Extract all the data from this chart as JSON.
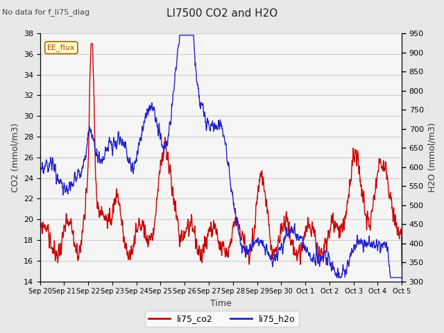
{
  "title": "LI7500 CO2 and H2O",
  "top_label": "No data for f_li75_diag",
  "annotation": "EE_flux",
  "ylabel_left": "CO2 (mmol/m3)",
  "ylabel_right": "H2O (mmol/m3)",
  "xlabel": "Time",
  "ylim_left": [
    14,
    38
  ],
  "ylim_right": [
    300,
    950
  ],
  "legend_labels": [
    "li75_co2",
    "li75_h2o"
  ],
  "legend_colors": [
    "#cc0000",
    "#2222cc"
  ],
  "grid_color": "#cccccc",
  "background_color": "#e8e8e8",
  "plot_bg_color": "#f5f5f5",
  "x_tick_labels": [
    "Sep 20",
    "Sep 21",
    "Sep 22",
    "Sep 23",
    "Sep 24",
    "Sep 25",
    "Sep 26",
    "Sep 27",
    "Sep 28",
    "Sep 29",
    "Sep 30",
    "Oct 1",
    "Oct 2",
    "Oct 3",
    "Oct 4",
    "Oct 5"
  ],
  "n_points": 1440
}
